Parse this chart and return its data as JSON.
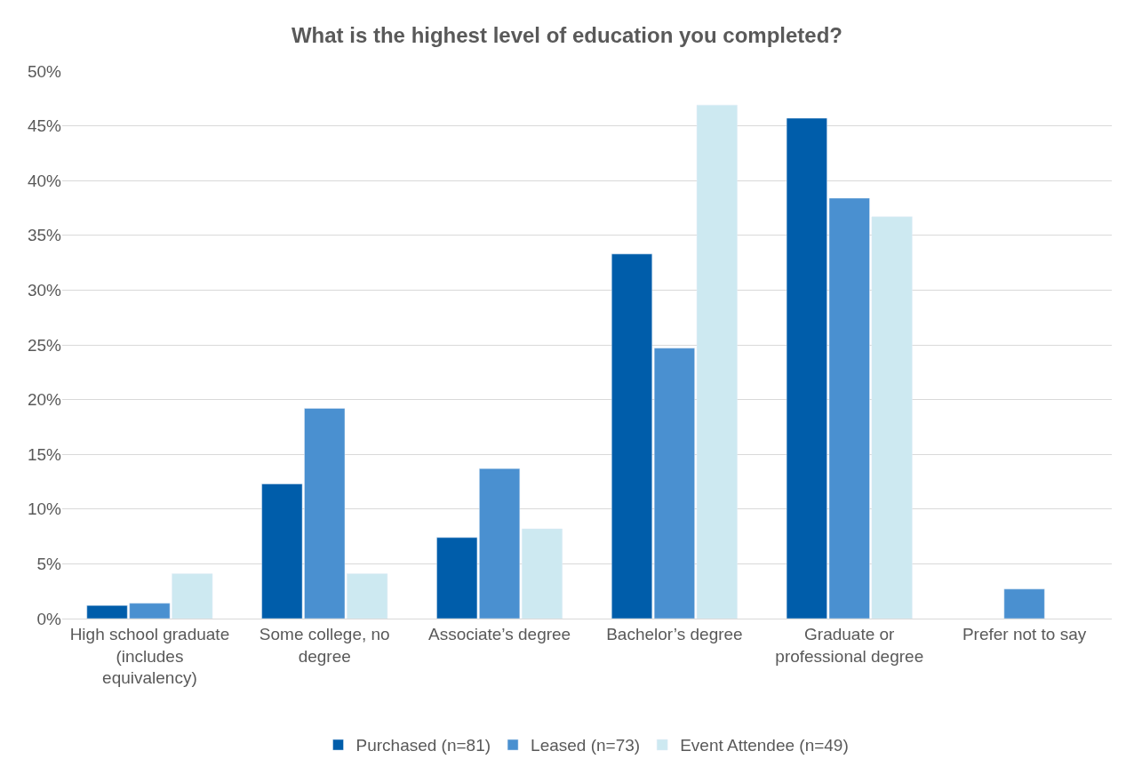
{
  "chart_data": {
    "type": "bar",
    "title": "What is the highest level of education you completed?",
    "categories": [
      "High school graduate (includes equivalency)",
      "Some college, no degree",
      "Associate’s degree",
      "Bachelor’s degree",
      "Graduate or professional degree",
      "Prefer not to say"
    ],
    "series": [
      {
        "name": "Purchased (n=81)",
        "color": "#005daa",
        "values": [
          1.2,
          12.3,
          7.4,
          33.3,
          45.7,
          null
        ]
      },
      {
        "name": "Leased (n=73)",
        "color": "#4a90d0",
        "values": [
          1.4,
          19.2,
          13.7,
          24.7,
          38.4,
          2.7
        ]
      },
      {
        "name": "Event Attendee (n=49)",
        "color": "#cde9f1",
        "values": [
          4.1,
          4.1,
          8.2,
          46.9,
          36.7,
          null
        ]
      }
    ],
    "ylim": [
      0,
      50
    ],
    "yticks": [
      {
        "value": 0,
        "label": "0%"
      },
      {
        "value": 5,
        "label": "5%"
      },
      {
        "value": 10,
        "label": "10%"
      },
      {
        "value": 15,
        "label": "15%"
      },
      {
        "value": 20,
        "label": "20%"
      },
      {
        "value": 25,
        "label": "25%"
      },
      {
        "value": 30,
        "label": "30%"
      },
      {
        "value": 35,
        "label": "35%"
      },
      {
        "value": 40,
        "label": "40%"
      },
      {
        "value": 45,
        "label": "45%"
      },
      {
        "value": 50,
        "label": "50%"
      }
    ],
    "grid": "y",
    "legend": "bottom"
  }
}
